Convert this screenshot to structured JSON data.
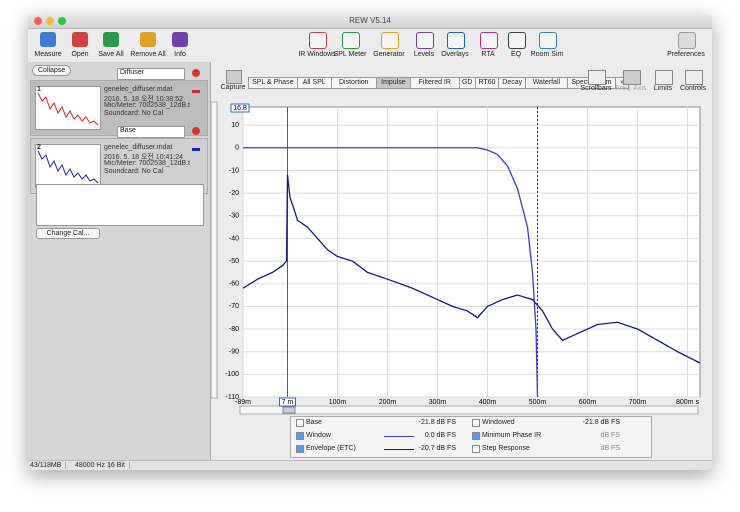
{
  "window_title": "REW V5.14",
  "toolbar_left": [
    "Measure",
    "Open",
    "Save All",
    "Remove All",
    "Info"
  ],
  "toolbar_center": [
    "IR Windows",
    "SPL Meter",
    "Generator",
    "Levels",
    "Overlays",
    "RTA",
    "EQ",
    "Room Sim"
  ],
  "preferences": "Preferences",
  "collapse": "Collapse",
  "measurements": [
    {
      "index": "1",
      "name": "Diffuser",
      "file": "genelec_diffuser.mdat",
      "date": "2016. 5. 18 오전 10:38:52",
      "meter": "Mic/Meter: 7002538_12dB.t",
      "cal": "Soundcard: No Cal",
      "color": "#e02020"
    },
    {
      "index": "2",
      "name": "Base",
      "file": "genelec_diffuser.mdat",
      "date": "2016. 5. 18 오전 10:41:24",
      "meter": "Mic/Meter: 7002538_12dB.t",
      "cal": "Soundcard: No Cal",
      "color": "#2020c0"
    }
  ],
  "change_cal": "Change Cal...",
  "capture": "Capture",
  "tabs": [
    "SPL & Phase",
    "All SPL",
    "Distortion",
    "Impulse",
    "Filtered IR",
    "GD",
    "RT60",
    "Decay",
    "Waterfall",
    "Spectrogram",
    "»"
  ],
  "active_tab": "Impulse",
  "right_controls": [
    "Scrollbars",
    "Freq. Axis",
    "Limits",
    "Controls"
  ],
  "chart_data": {
    "type": "line",
    "top_readout": "16.8",
    "cursor": {
      "x": 0,
      "label": "7 m"
    },
    "window_end": 500,
    "xlim": [
      -89,
      825
    ],
    "ylim": [
      -110,
      18
    ],
    "xticks": [
      {
        "value": -89,
        "label": "-89m"
      },
      {
        "value": 100,
        "label": "100m"
      },
      {
        "value": 200,
        "label": "200m"
      },
      {
        "value": 300,
        "label": "300m"
      },
      {
        "value": 400,
        "label": "400m"
      },
      {
        "value": 500,
        "label": "500m"
      },
      {
        "value": 600,
        "label": "600m"
      },
      {
        "value": 700,
        "label": "700m"
      },
      {
        "value": 800,
        "label": "800m s"
      }
    ],
    "yticks": [
      10,
      0,
      -10,
      -20,
      -30,
      -40,
      -50,
      -60,
      -70,
      -80,
      -90,
      -100,
      -110
    ],
    "grid": true,
    "series": [
      {
        "name": "Window",
        "color": "#3a3ae0",
        "x": [
          -89,
          380,
          400,
          420,
          440,
          460,
          480,
          490,
          497,
          500
        ],
        "values": [
          0,
          0,
          -1,
          -3,
          -8,
          -18,
          -35,
          -55,
          -80,
          -110
        ]
      },
      {
        "name": "Envelope (ETC)",
        "color": "#16168a",
        "x": [
          -89,
          -60,
          -30,
          -10,
          -2,
          0,
          5,
          10,
          20,
          40,
          60,
          80,
          100,
          130,
          160,
          200,
          250,
          300,
          330,
          360,
          380,
          400,
          430,
          460,
          490,
          510,
          530,
          550,
          580,
          620,
          660,
          700,
          740,
          780,
          825
        ],
        "values": [
          -62,
          -58,
          -55,
          -52,
          -50,
          -12,
          -22,
          -25,
          -32,
          -35,
          -40,
          -45,
          -48,
          -50,
          -55,
          -58,
          -62,
          -67,
          -70,
          -72,
          -75,
          -70,
          -67,
          -65,
          -67,
          -72,
          -80,
          -85,
          -82,
          -78,
          -77,
          -80,
          -85,
          -90,
          -95
        ]
      }
    ]
  },
  "legend_left": [
    {
      "name": "Base",
      "checked": false,
      "value": "-21.8 dB FS"
    },
    {
      "series": 0,
      "checked": true,
      "value": "0.0 dB FS"
    },
    {
      "series": 1,
      "checked": true,
      "value": "-20.7 dB FS"
    }
  ],
  "legend_right": [
    {
      "name": "Windowed",
      "checked": false,
      "value": "-21.8 dB FS"
    },
    {
      "name": "Minimum Phase IR",
      "checked": true,
      "value": "dB FS"
    },
    {
      "name": "Step Response",
      "checked": false,
      "value": "dB FS"
    }
  ],
  "status": [
    "43/118MB",
    "48000 Hz",
    "16 Bit"
  ]
}
